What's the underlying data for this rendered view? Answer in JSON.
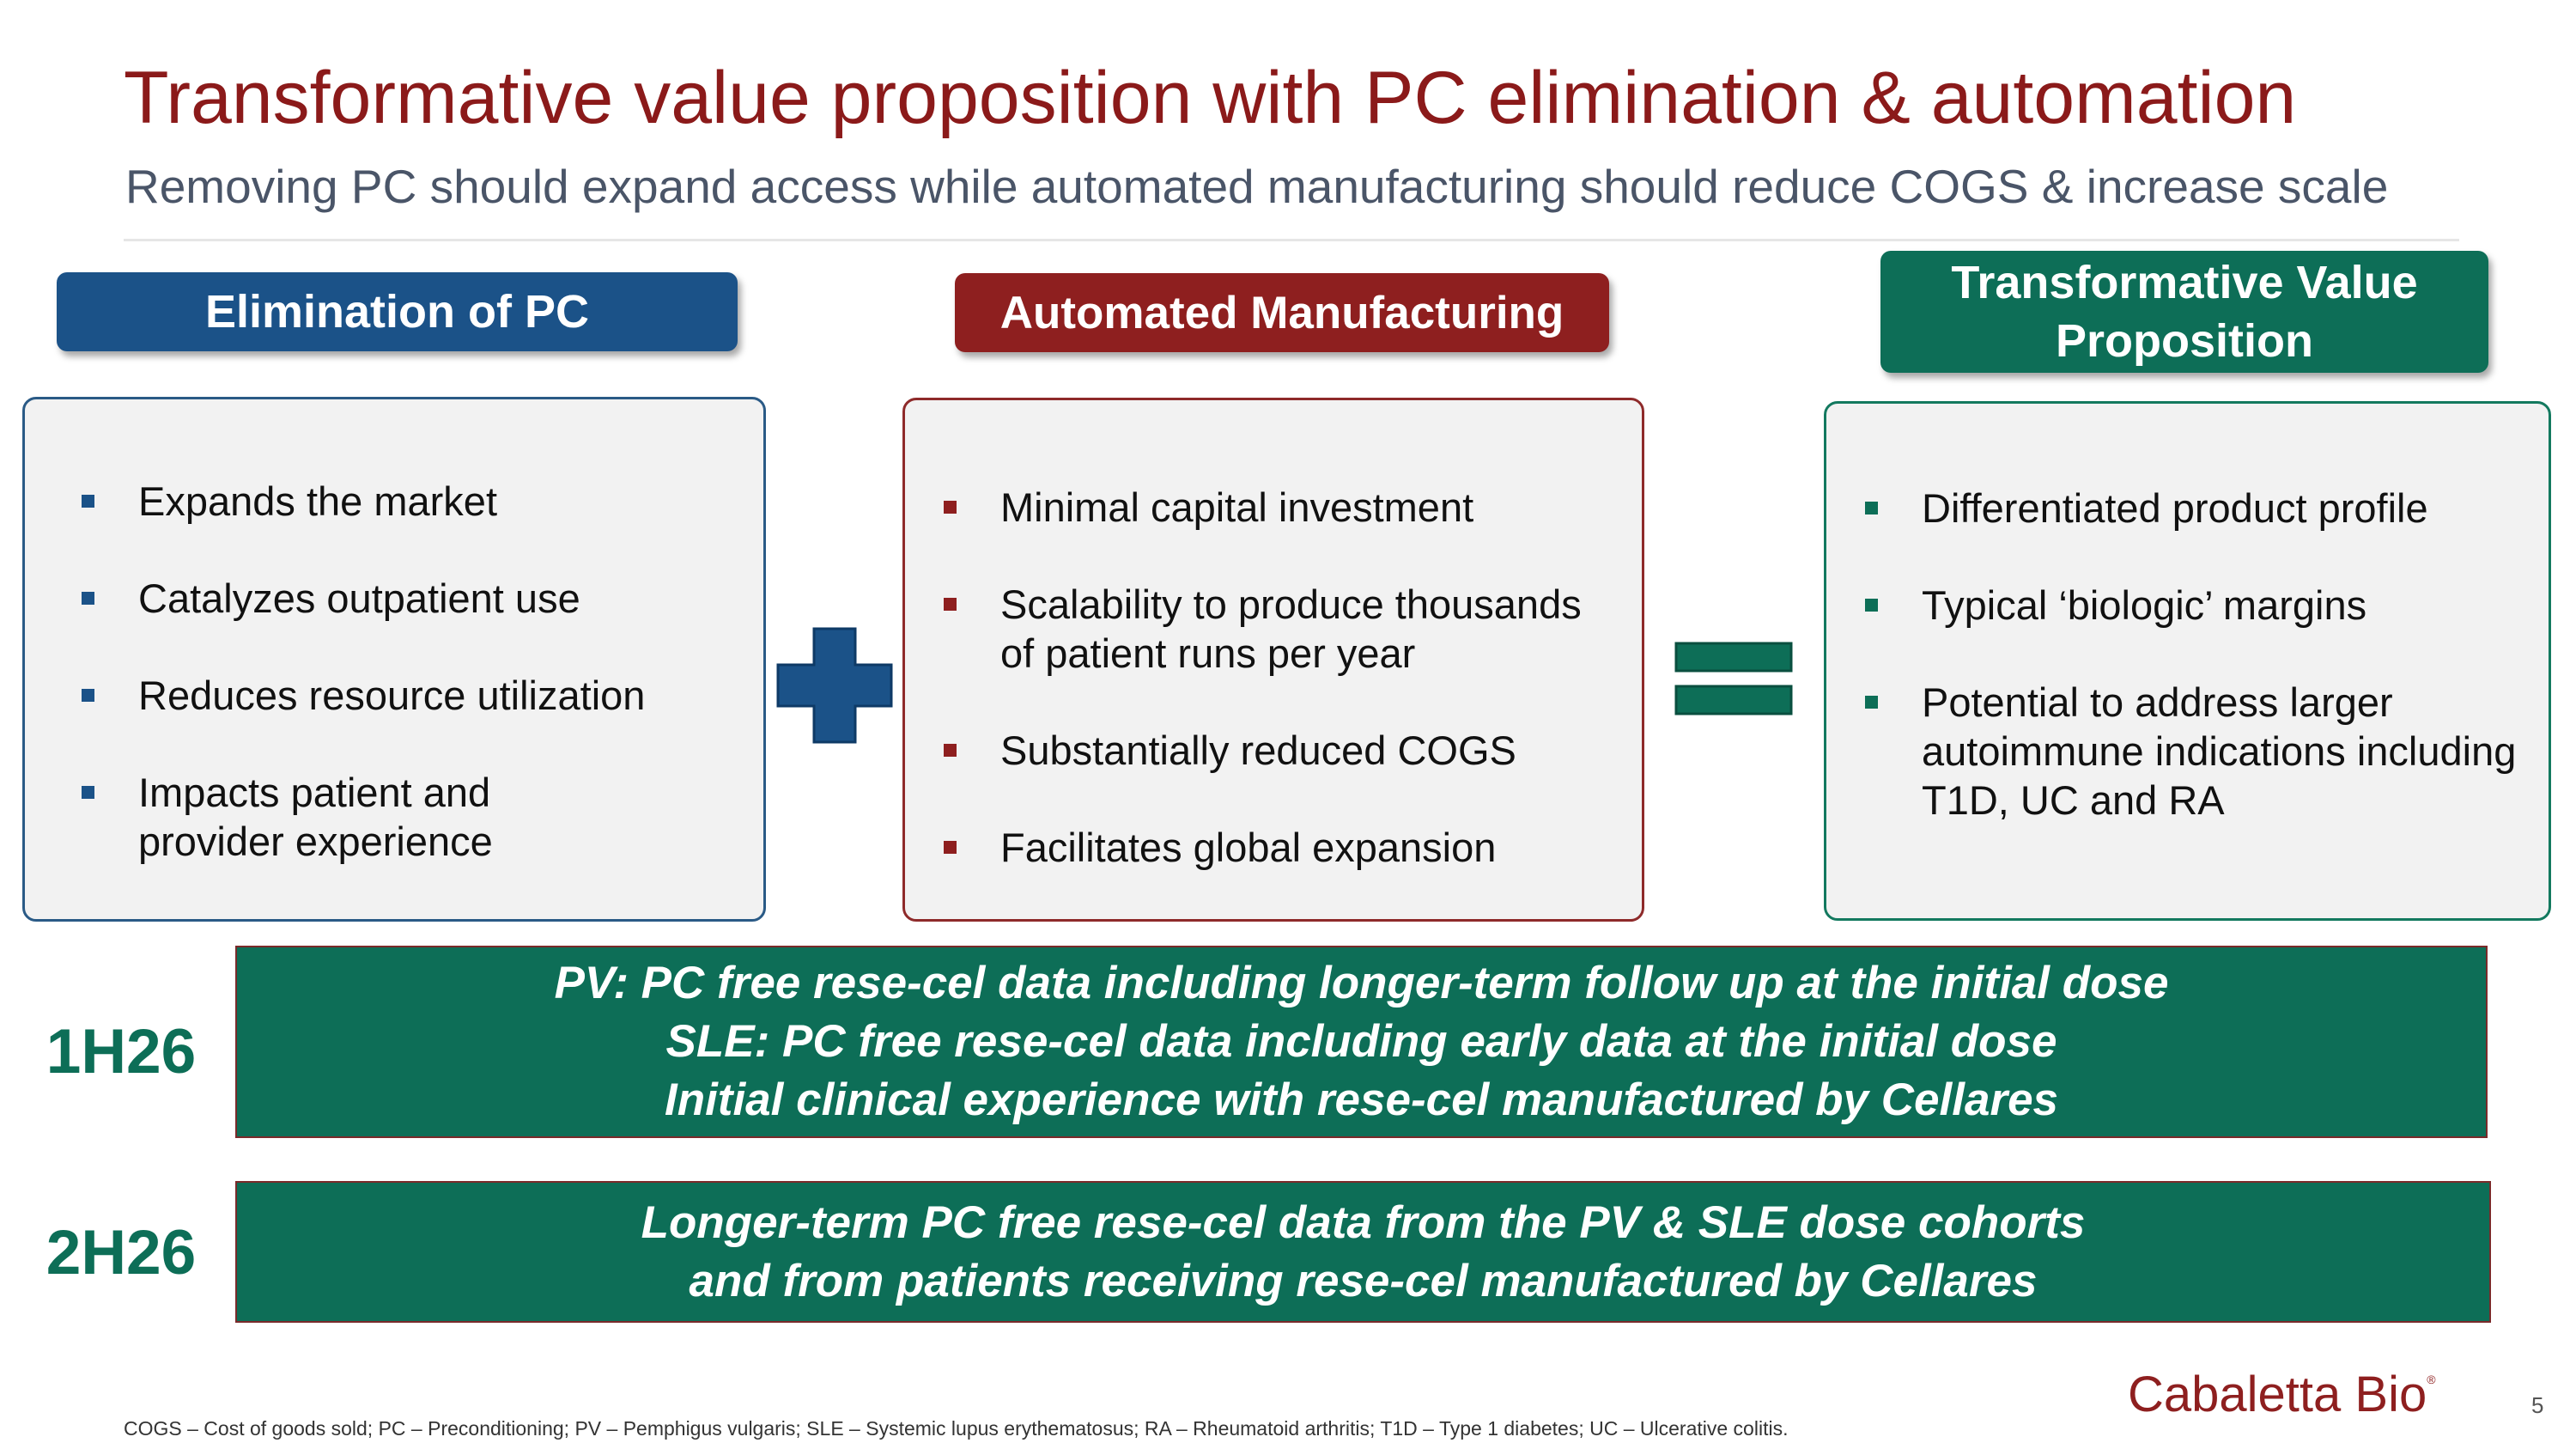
{
  "slide": {
    "title": "Transformative value proposition with PC elimination & automation",
    "subtitle": "Removing PC should expand access while automated manufacturing should reduce COGS & increase scale"
  },
  "columns": {
    "pc": {
      "header": "Elimination of PC",
      "bullets": [
        "Expands the market",
        "Catalyzes outpatient use",
        "Reduces resource utilization",
        "Impacts patient and provider experience"
      ]
    },
    "am": {
      "header": "Automated Manufacturing",
      "bullets": [
        "Minimal capital investment",
        "Scalability to produce thousands of patient runs per year",
        "Substantially reduced COGS",
        "Facilitates global expansion"
      ]
    },
    "tv": {
      "header_line1": "Transformative Value",
      "header_line2": "Proposition",
      "bullets": [
        "Differentiated product profile",
        "Typical ‘biologic’ margins",
        "Potential to address larger autoimmune indications including T1D, UC and RA"
      ]
    }
  },
  "operators": {
    "plus_color": "#1B5288",
    "equals_color": "#0D6E57"
  },
  "timeline": [
    {
      "label": "1H26",
      "lines": [
        "PV: PC free rese-cel data including longer-term follow up at the initial dose",
        "SLE: PC free rese-cel data including early data at the initial dose",
        "Initial clinical experience with rese-cel manufactured by Cellares"
      ]
    },
    {
      "label": "2H26",
      "lines": [
        "Longer-term PC free rese-cel data from the PV & SLE dose cohorts",
        "and from patients receiving rese-cel manufactured by Cellares"
      ]
    }
  ],
  "footer": {
    "footnote": "COGS – Cost of goods sold; PC – Preconditioning; PV – Pemphigus vulgaris; SLE – Systemic lupus erythematosus; RA – Rheumatoid arthritis; T1D – Type 1 diabetes; UC – Ulcerative colitis.",
    "logo_text": "Cabaletta Bio",
    "logo_mark": "®",
    "page_number": "5"
  },
  "colors": {
    "title": "#8B1A1A",
    "blue": "#1B5288",
    "red": "#8E1F1F",
    "green": "#0D6E57"
  }
}
